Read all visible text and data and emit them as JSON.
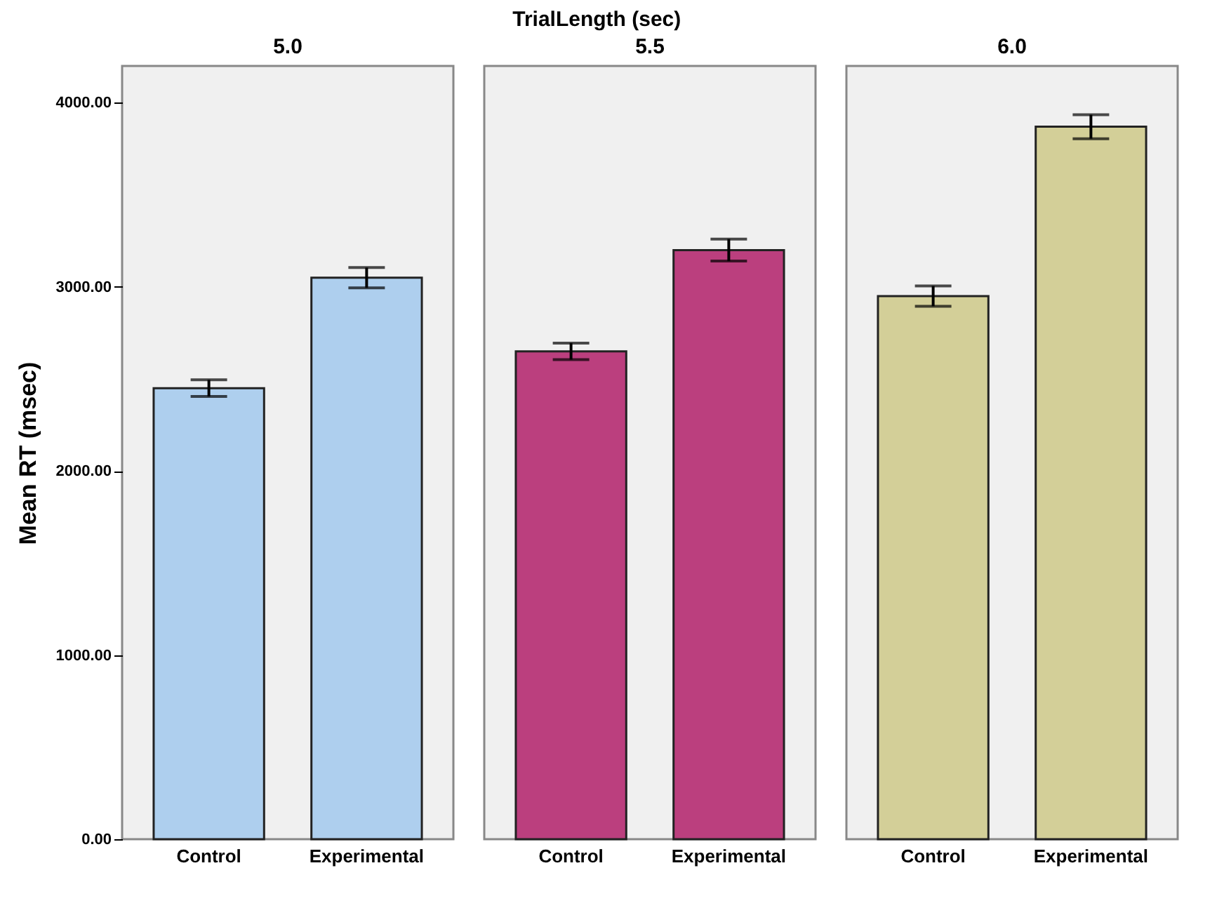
{
  "chart_data": [
    {
      "type": "bar",
      "title": "5.0",
      "ylabel": "Mean RT (msec)",
      "annotations": [
        "TrialLength (sec)"
      ],
      "categories": [
        "Control",
        "Experimental"
      ],
      "ylim": [
        0,
        4200
      ],
      "yticks": [
        {
          "value": 0,
          "label": "0.00"
        },
        {
          "value": 1000,
          "label": "1000.00"
        },
        {
          "value": 2000,
          "label": "2000.00"
        },
        {
          "value": 3000,
          "label": "3000.00"
        },
        {
          "value": 4000,
          "label": "4000.00"
        }
      ],
      "grid": false,
      "series": [
        {
          "color": "#aecfee",
          "values": [
            2450,
            3050
          ],
          "errors": [
            45,
            55
          ]
        }
      ]
    },
    {
      "type": "bar",
      "title": "5.5",
      "categories": [
        "Control",
        "Experimental"
      ],
      "ylim": [
        0,
        4200
      ],
      "tick_labels": "x",
      "grid": false,
      "series": [
        {
          "color": "#bb3f7e",
          "values": [
            2650,
            3200
          ],
          "errors": [
            45,
            60
          ]
        }
      ]
    },
    {
      "type": "bar",
      "title": "6.0",
      "categories": [
        "Control",
        "Experimental"
      ],
      "ylim": [
        0,
        4200
      ],
      "tick_labels": "x",
      "grid": false,
      "series": [
        {
          "color": "#d3cf98",
          "values": [
            2950,
            3870
          ],
          "errors": [
            55,
            65
          ]
        }
      ]
    }
  ]
}
